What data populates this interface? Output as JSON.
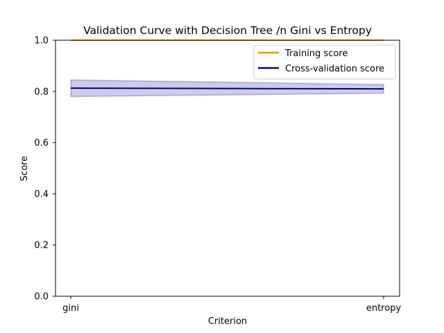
{
  "chart_data": {
    "type": "line",
    "title": "Validation Curve with Decision Tree /n Gini vs Entropy",
    "xlabel": "Criterion",
    "ylabel": "Score",
    "categories": [
      "gini",
      "entropy"
    ],
    "ylim": [
      0.0,
      1.0
    ],
    "yticks": [
      "0.0",
      "0.2",
      "0.4",
      "0.6",
      "0.8",
      "1.0"
    ],
    "grid": false,
    "legend_position": "top-right",
    "series": [
      {
        "name": "Training score",
        "color": "#ff8c00",
        "values": [
          1.0,
          1.0
        ],
        "band_lower": [
          1.0,
          1.0
        ],
        "band_upper": [
          1.0,
          1.0
        ]
      },
      {
        "name": "Cross-validation score",
        "color": "#000080",
        "values": [
          0.813,
          0.81
        ],
        "band_lower": [
          0.78,
          0.793
        ],
        "band_upper": [
          0.845,
          0.827
        ]
      }
    ]
  }
}
